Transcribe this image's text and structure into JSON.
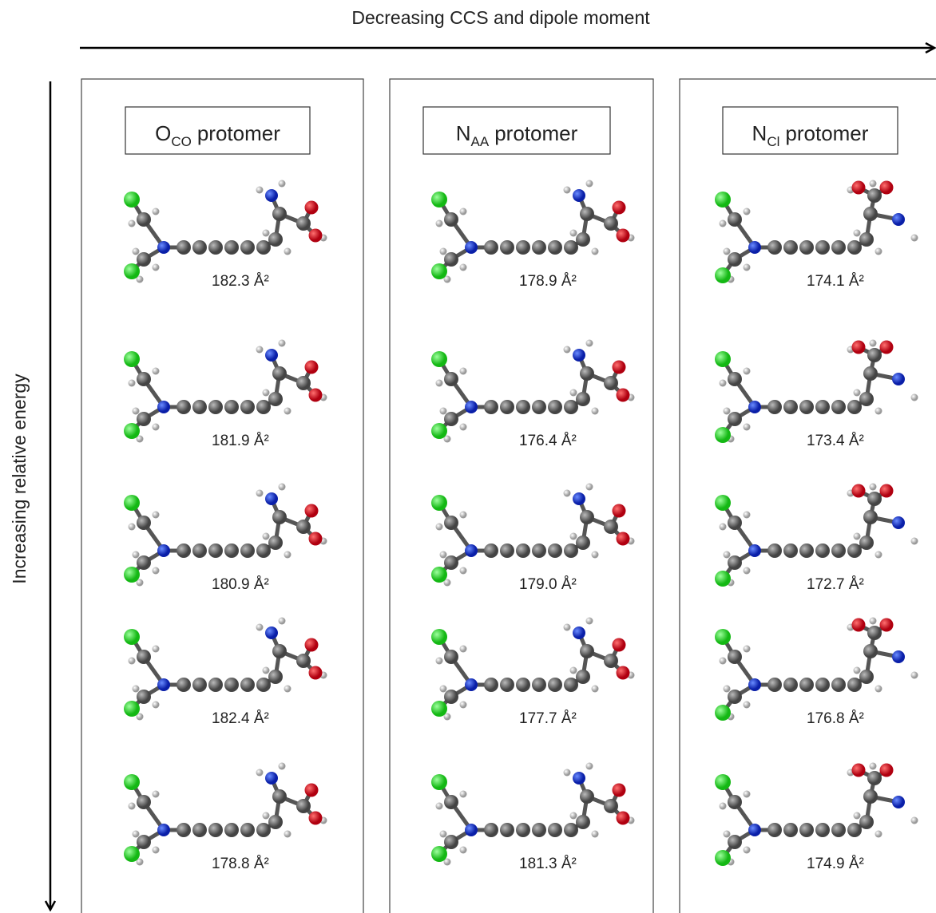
{
  "top_label": "Decreasing CCS and dipole moment",
  "side_label": "Increasing relative energy",
  "columns": [
    {
      "header": {
        "main": "O",
        "sub": "CO",
        "rest": "protomer"
      },
      "ccs": [
        "182.3 Å²",
        "181.9 Å²",
        "180.9 Å²",
        "182.4 Å²",
        "178.8 Å²"
      ]
    },
    {
      "header": {
        "main": "N",
        "sub": "AA",
        "rest": "protomer"
      },
      "ccs": [
        "178.9 Å²",
        "176.4 Å²",
        "179.0 Å²",
        "177.7 Å²",
        "181.3 Å²"
      ]
    },
    {
      "header": {
        "main": "N",
        "sub": "Cl",
        "rest": "protomer"
      },
      "ccs": [
        "174.1 Å²",
        "173.4 Å²",
        "172.7 Å²",
        "176.8 Å²",
        "174.9 Å²"
      ]
    }
  ]
}
